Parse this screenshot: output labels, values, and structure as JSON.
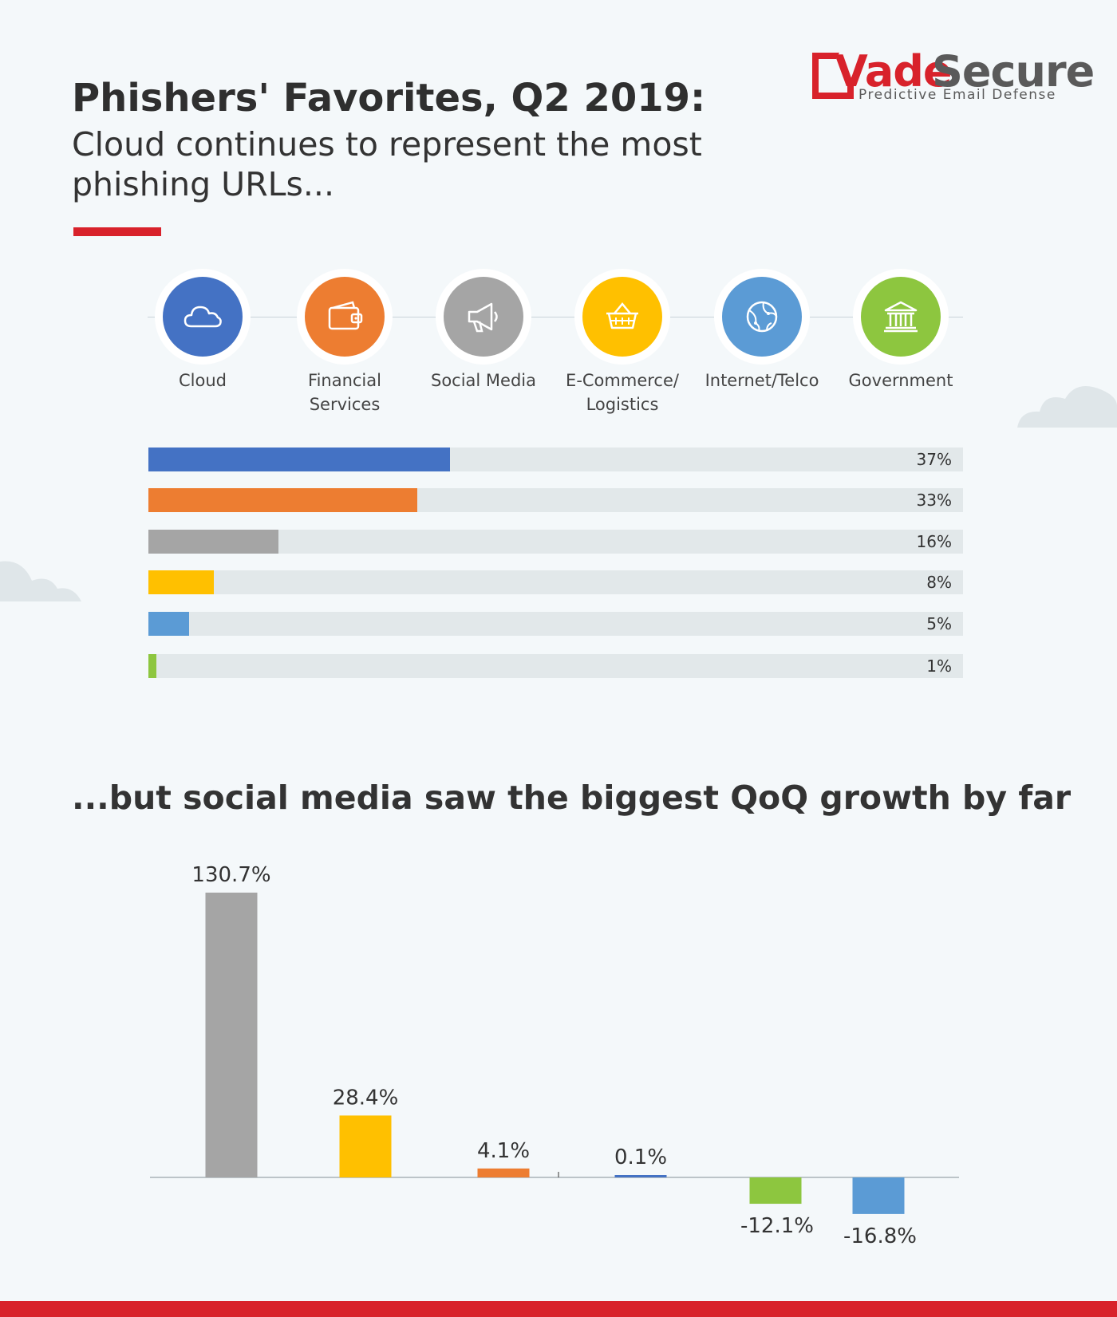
{
  "header": {
    "title": "Phishers' Favorites, Q2 2019:",
    "subtitle": "Cloud continues to represent the most phishing URLs..."
  },
  "logo": {
    "word_vade": "Vade",
    "word_secure": "Secure",
    "tagline": "Predictive Email Defense"
  },
  "categories": [
    {
      "label": "Cloud",
      "icon": "cloud-icon",
      "color": "#4472c4"
    },
    {
      "label": "Financial Services",
      "icon": "wallet-icon",
      "color": "#ed7d31"
    },
    {
      "label": "Social Media",
      "icon": "megaphone-icon",
      "color": "#a5a5a5"
    },
    {
      "label": "E-Commerce/ Logistics",
      "icon": "basket-icon",
      "color": "#ffc000"
    },
    {
      "label": "Internet/Telco",
      "icon": "globe-icon",
      "color": "#5b9bd5"
    },
    {
      "label": "Government",
      "icon": "government-building-icon",
      "color": "#8dc63f"
    }
  ],
  "chart_data": [
    {
      "type": "bar",
      "orientation": "horizontal",
      "categories": [
        "Cloud",
        "Financial Services",
        "Social Media",
        "E-Commerce/ Logistics",
        "Internet/Telco",
        "Government"
      ],
      "values": [
        37,
        33,
        16,
        8,
        5,
        1
      ],
      "value_labels": [
        "37%",
        "33%",
        "16%",
        "8%",
        "5%",
        "1%"
      ],
      "colors": [
        "#4472c4",
        "#ed7d31",
        "#a5a5a5",
        "#ffc000",
        "#5b9bd5",
        "#8dc63f"
      ],
      "xlim": [
        0,
        100
      ],
      "grid": false
    },
    {
      "type": "bar",
      "title": "...but social media saw the biggest QoQ growth by far",
      "categories": [
        "Social Media",
        "E-Commerce/ Logistics",
        "Financial Services",
        "Cloud",
        "Government",
        "Internet/Telco"
      ],
      "values": [
        130.7,
        28.4,
        4.1,
        0.1,
        -12.1,
        -16.8
      ],
      "value_labels": [
        "130.7%",
        "28.4%",
        "4.1%",
        "0.1%",
        "-12.1%",
        "-16.8%"
      ],
      "colors": [
        "#a5a5a5",
        "#ffc000",
        "#ed7d31",
        "#4472c4",
        "#8dc63f",
        "#5b9bd5"
      ],
      "grid": false
    }
  ]
}
